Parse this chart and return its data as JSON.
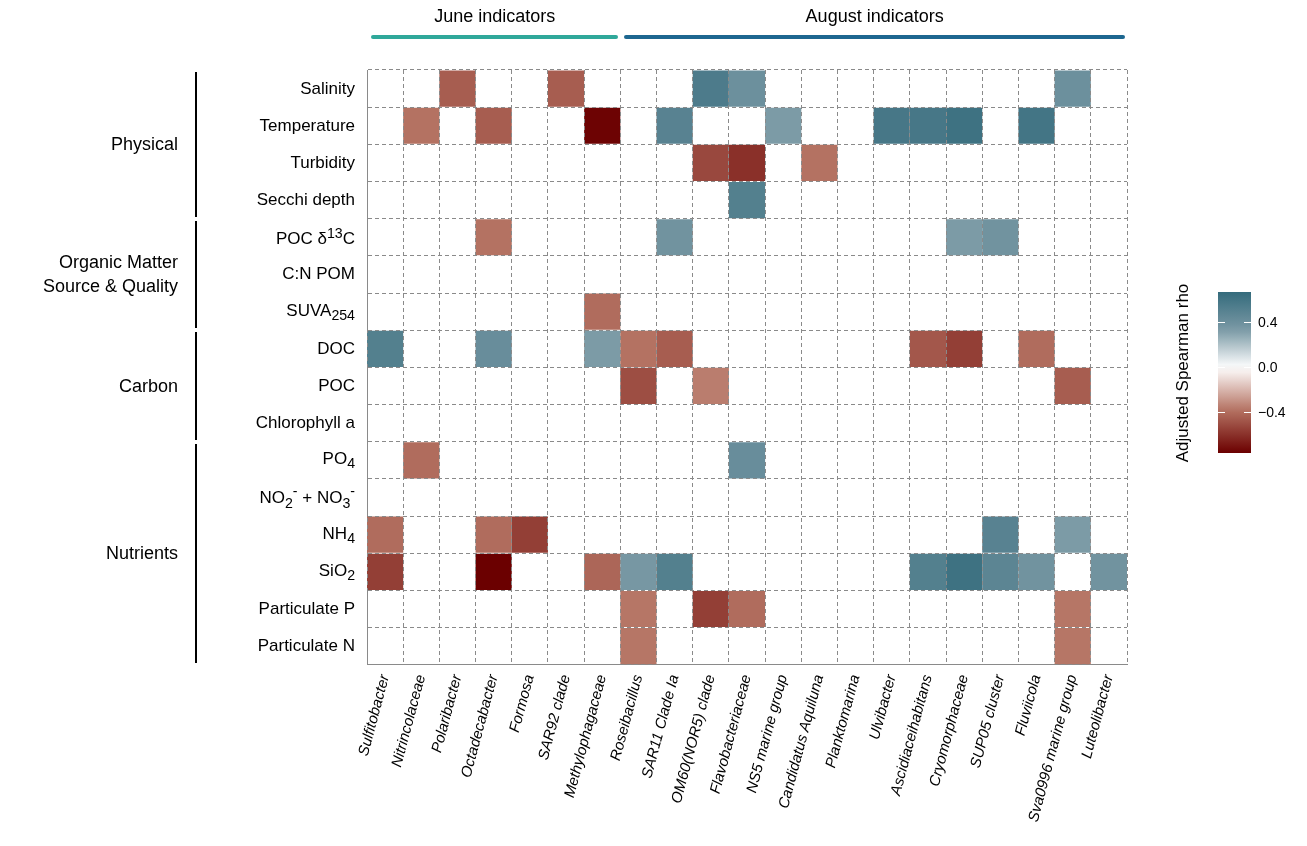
{
  "chart_data": {
    "type": "heatmap",
    "categories": [
      "Sulfitobacter",
      "Nitrincolaceae",
      "Polaribacter",
      "Octadecabacter",
      "Formosa",
      "SAR92 clade",
      "Methylophagaceae",
      "Roseibacillus",
      "SAR11 Clade Ia",
      "OM60(NOR5) clade",
      "Flavobacteriaceae",
      "NS5 marine group",
      "Candidatus Aquiluna",
      "Planktomarina",
      "Ulvibacter",
      "Ascidiaceihabitans",
      "Cryomorphaceae",
      "SUP05 cluster",
      "Fluviicola",
      "Sva0996 marine group",
      "Luteolibacter"
    ],
    "y_categories": [
      "Salinity",
      "Temperature",
      "Turbidity",
      "Secchi depth",
      "POC δ$^{13}$C",
      "C:N POM",
      "SUVA$_{254}$",
      "DOC",
      "POC",
      "Chlorophyll a",
      "PO$_{4}$",
      "NO$_{2}$$^{-}$ + NO$_{3}$$^{-}$",
      "NH$_{4}$",
      "SiO$_{2}$",
      "Particulate P",
      "Particulate N"
    ],
    "cells": [
      [
        null,
        null,
        -0.45,
        null,
        null,
        -0.45,
        null,
        null,
        null,
        0.55,
        0.4,
        null,
        null,
        null,
        null,
        null,
        null,
        null,
        null,
        0.4,
        null
      ],
      [
        null,
        -0.38,
        null,
        -0.45,
        null,
        null,
        -0.75,
        null,
        0.5,
        null,
        null,
        0.33,
        null,
        null,
        0.58,
        0.58,
        0.62,
        null,
        0.6,
        null,
        null
      ],
      [
        null,
        null,
        null,
        null,
        null,
        null,
        null,
        null,
        null,
        -0.52,
        -0.6,
        null,
        -0.38,
        null,
        null,
        null,
        null,
        null,
        null,
        null,
        null
      ],
      [
        null,
        null,
        null,
        null,
        null,
        null,
        null,
        null,
        null,
        null,
        0.52,
        null,
        null,
        null,
        null,
        null,
        null,
        null,
        null,
        null,
        null
      ],
      [
        null,
        null,
        null,
        -0.38,
        null,
        null,
        null,
        null,
        0.38,
        null,
        null,
        null,
        null,
        null,
        null,
        null,
        0.33,
        0.38,
        null,
        null,
        null
      ],
      [
        null,
        null,
        null,
        null,
        null,
        null,
        null,
        null,
        null,
        null,
        null,
        null,
        null,
        null,
        null,
        null,
        null,
        null,
        null,
        null,
        null
      ],
      [
        null,
        null,
        null,
        null,
        null,
        null,
        -0.4,
        null,
        null,
        null,
        null,
        null,
        null,
        null,
        null,
        null,
        null,
        null,
        null,
        null,
        null
      ],
      [
        0.52,
        null,
        null,
        0.42,
        null,
        null,
        0.33,
        -0.38,
        -0.45,
        null,
        null,
        null,
        null,
        null,
        null,
        -0.47,
        -0.55,
        null,
        -0.4,
        null,
        null
      ],
      [
        null,
        null,
        null,
        null,
        null,
        null,
        null,
        -0.5,
        null,
        -0.35,
        null,
        null,
        null,
        null,
        null,
        null,
        null,
        null,
        null,
        -0.45,
        null
      ],
      [
        null,
        null,
        null,
        null,
        null,
        null,
        null,
        null,
        null,
        null,
        null,
        null,
        null,
        null,
        null,
        null,
        null,
        null,
        null,
        null,
        null
      ],
      [
        null,
        -0.4,
        null,
        null,
        null,
        null,
        null,
        null,
        null,
        null,
        0.42,
        null,
        null,
        null,
        null,
        null,
        null,
        null,
        null,
        null,
        null
      ],
      [
        null,
        null,
        null,
        null,
        null,
        null,
        null,
        null,
        null,
        null,
        null,
        null,
        null,
        null,
        null,
        null,
        null,
        null,
        null,
        null,
        null
      ],
      [
        -0.4,
        null,
        null,
        -0.4,
        -0.55,
        null,
        null,
        null,
        null,
        null,
        null,
        null,
        null,
        null,
        null,
        null,
        null,
        0.5,
        null,
        0.33,
        null
      ],
      [
        -0.55,
        null,
        null,
        -0.76,
        null,
        null,
        -0.42,
        0.35,
        0.52,
        null,
        null,
        null,
        null,
        null,
        null,
        0.52,
        0.62,
        0.48,
        0.38,
        null,
        0.38
      ],
      [
        null,
        null,
        null,
        null,
        null,
        null,
        null,
        -0.37,
        null,
        -0.55,
        -0.4,
        null,
        null,
        null,
        null,
        null,
        null,
        null,
        null,
        -0.37,
        null
      ],
      [
        null,
        null,
        null,
        null,
        null,
        null,
        null,
        -0.37,
        null,
        null,
        null,
        null,
        null,
        null,
        null,
        null,
        null,
        null,
        null,
        -0.37,
        null
      ]
    ],
    "clim": [
      -0.76,
      0.67
    ],
    "cticks": [
      0.4,
      {
        "value": 0,
        "label": "0.0"
      },
      {
        "value": -0.4,
        "label": "−0.4"
      }
    ],
    "clabel": "Adjusted Spearman rho",
    "annotations": [
      "June indicators",
      "August indicators",
      "Physical",
      "Organic Matter Source & Quality",
      "Carbon",
      "Nutrients"
    ],
    "grid": true
  }
}
